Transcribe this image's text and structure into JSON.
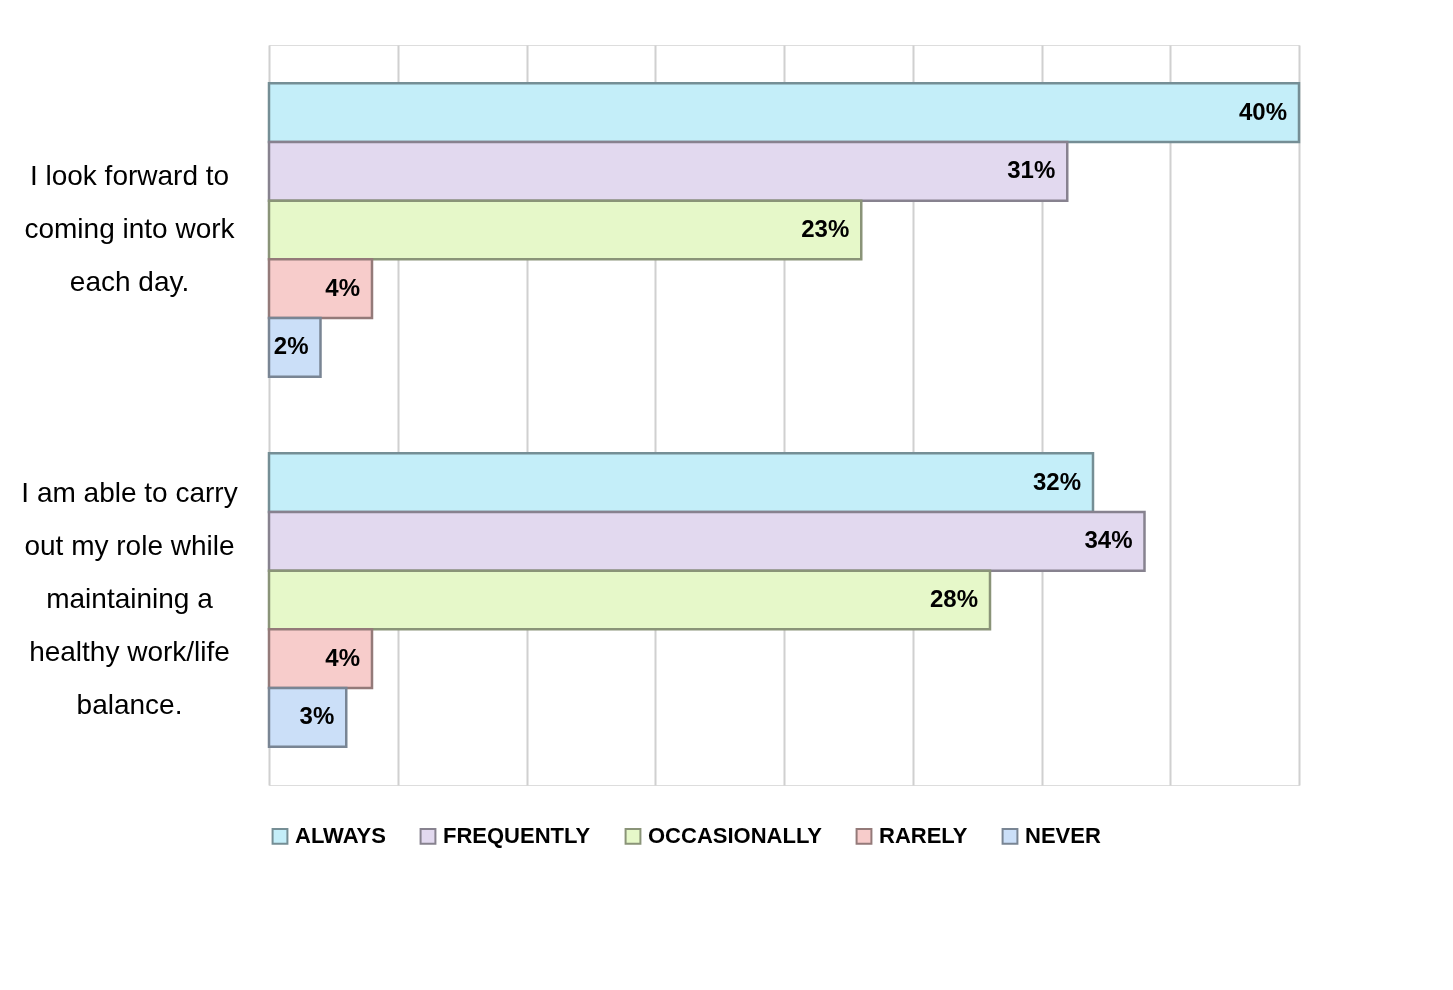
{
  "chart_data": {
    "type": "bar",
    "orientation": "horizontal",
    "categories": [
      "I look forward to coming into work each day.",
      "I am able to carry out my role while maintaining a healthy work/life balance."
    ],
    "series": [
      {
        "name": "ALWAYS",
        "color": "#c4eef9",
        "values": [
          40,
          32
        ],
        "value_labels": [
          "40%",
          "32%"
        ]
      },
      {
        "name": "FREQUENTLY",
        "color": "#e2d9ef",
        "values": [
          31,
          34
        ],
        "value_labels": [
          "31%",
          "34%"
        ]
      },
      {
        "name": "OCCASIONALLY",
        "color": "#e6f8c9",
        "values": [
          23,
          28
        ],
        "value_labels": [
          "23%",
          "28%"
        ]
      },
      {
        "name": "RARELY",
        "color": "#f7cccb",
        "values": [
          4,
          4
        ],
        "value_labels": [
          "4%",
          "4%"
        ]
      },
      {
        "name": "NEVER",
        "color": "#cbdff8",
        "values": [
          2,
          3
        ],
        "value_labels": [
          "2%",
          "3%"
        ]
      }
    ],
    "xlim": [
      0,
      40
    ],
    "xticks": [
      {
        "value": 0,
        "label": null
      },
      {
        "value": 5,
        "label": null
      },
      {
        "value": 10,
        "label": null
      },
      {
        "value": 15,
        "label": null
      },
      {
        "value": 20,
        "label": null
      },
      {
        "value": 25,
        "label": null
      },
      {
        "value": 30,
        "label": null
      },
      {
        "value": 35,
        "label": null
      },
      {
        "value": 40,
        "label": null
      }
    ],
    "grid": "x",
    "legend": "bottom",
    "tick_labels": "y"
  }
}
